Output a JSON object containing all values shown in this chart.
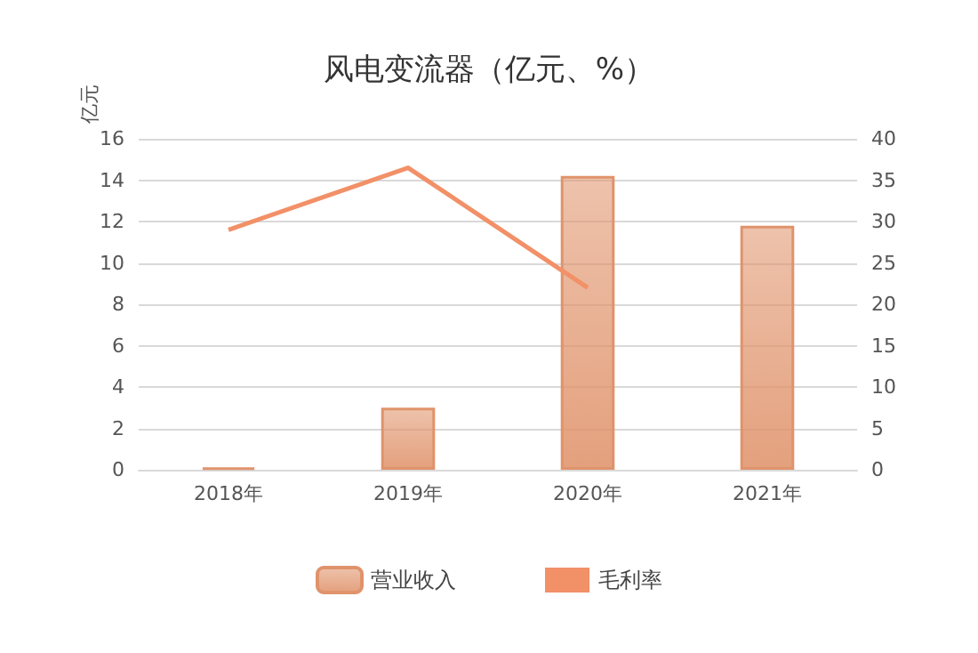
{
  "chart_data": {
    "type": "bar",
    "title": "风电变流器（亿元、%）",
    "ylabel": "亿元",
    "categories": [
      "2018年",
      "2019年",
      "2020年",
      "2021年"
    ],
    "series": [
      {
        "name": "营业收入",
        "color": "#e0936b",
        "values": [
          0.1,
          3,
          14.2,
          11.8
        ]
      },
      {
        "name": "毛利率",
        "type": "line",
        "axis": "y2",
        "color": "#f29068",
        "values": [
          29,
          36.5,
          22,
          null
        ]
      }
    ],
    "ylim": [
      0,
      16
    ],
    "yticks": [
      0,
      2,
      4,
      6,
      8,
      10,
      12,
      14,
      16
    ],
    "y2lim": [
      0,
      40
    ],
    "y2ticks": [
      0,
      5,
      10,
      15,
      20,
      25,
      30,
      35,
      40
    ],
    "grid": "y",
    "legend": "bottom",
    "marker": "none"
  }
}
